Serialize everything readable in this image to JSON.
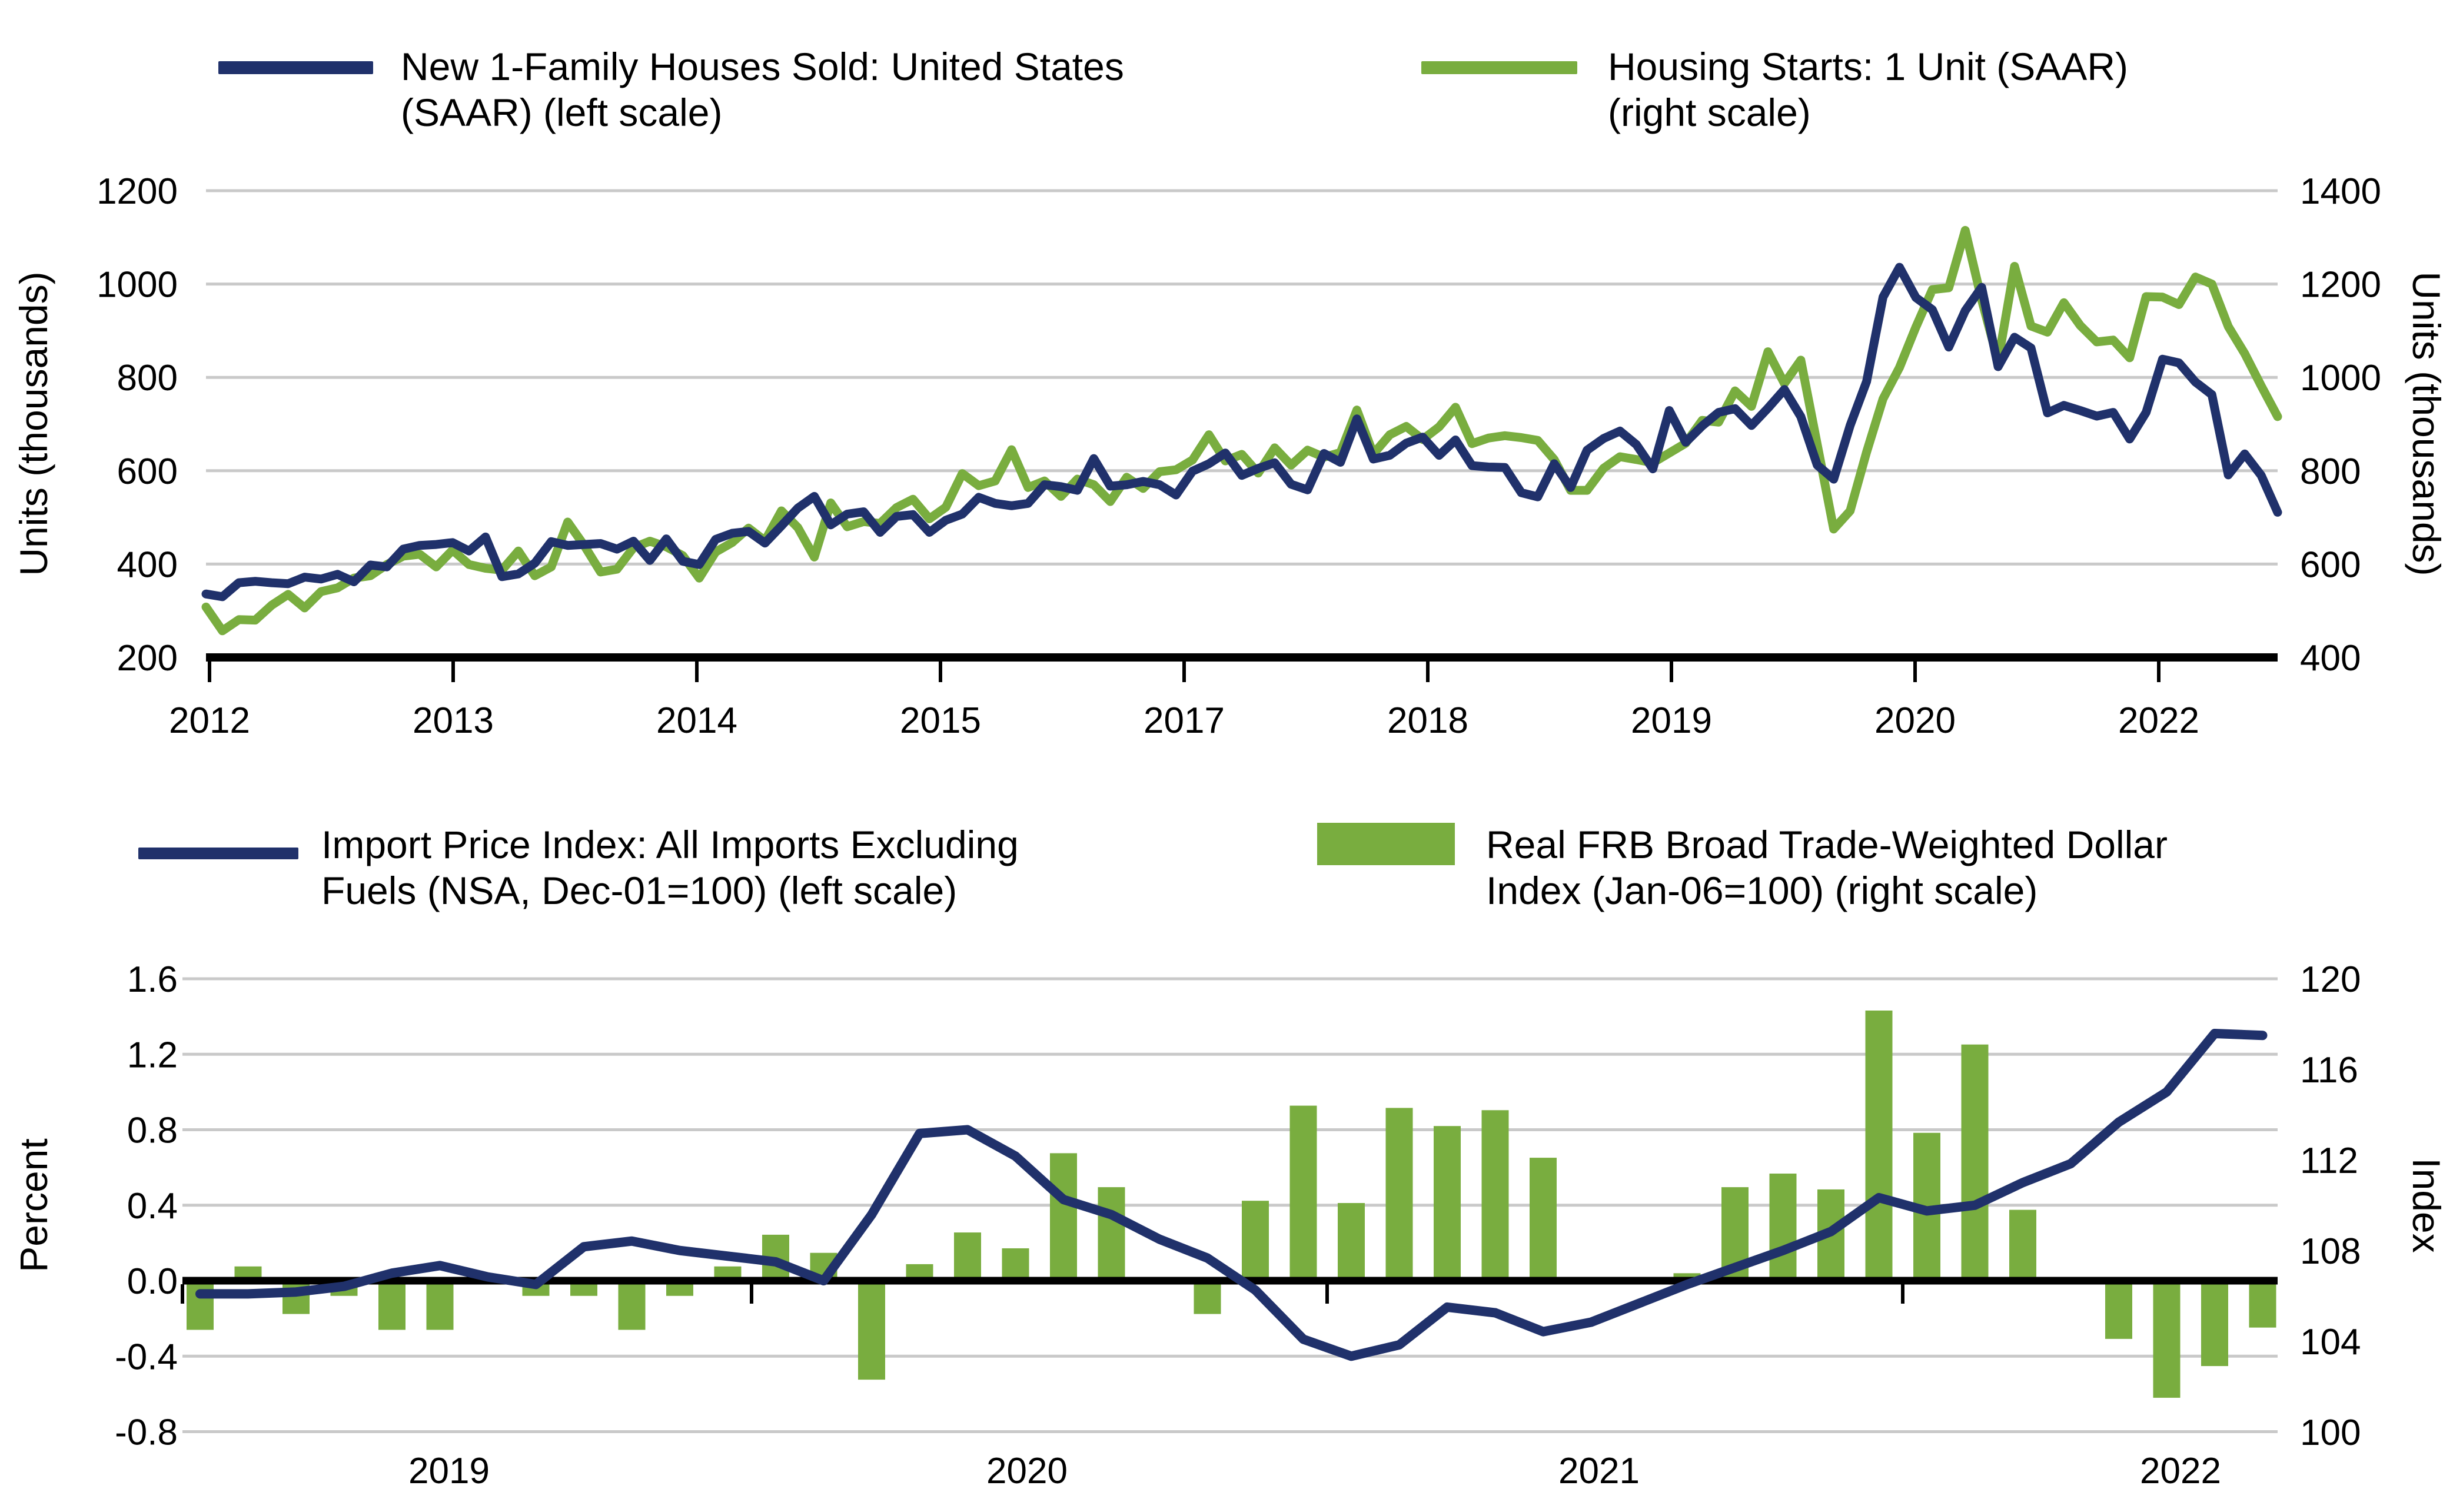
{
  "colors": {
    "navy": "#20316b",
    "green": "#79ad3f",
    "gridline": "#c9c9c9",
    "axis_black": "#000000",
    "background": "#ffffff"
  },
  "top_chart": {
    "legend": [
      {
        "line1": "New 1-Family Houses Sold: United States",
        "line2": "(SAAR) (left scale)",
        "swatch": "line",
        "color": "#20316b"
      },
      {
        "line1": "Housing Starts: 1 Unit (SAAR)",
        "line2": "(right scale)",
        "swatch": "line",
        "color": "#79ad3f"
      }
    ],
    "left_axis_title": "Units (thousands)",
    "right_axis_title": "Units (thousands)",
    "left_tick_labels": [
      "1200",
      "1000",
      "800",
      "600",
      "400",
      "200"
    ],
    "right_tick_labels": [
      "1400",
      "1200",
      "1000",
      "800",
      "600",
      "400"
    ],
    "x_tick_labels": [
      "2012",
      "2013",
      "2014",
      "2015",
      "2017",
      "2018",
      "2019",
      "2020",
      "2022"
    ]
  },
  "bottom_chart": {
    "legend": [
      {
        "line1": "Import Price Index: All Imports Excluding",
        "line2": "Fuels (NSA, Dec-01=100) (left scale)",
        "swatch": "line",
        "color": "#20316b"
      },
      {
        "line1": "Real FRB Broad Trade-Weighted Dollar",
        "line2": "Index (Jan-06=100) (right scale)",
        "swatch": "rect",
        "color": "#79ad3f"
      }
    ],
    "left_axis_title": "Percent",
    "right_axis_title": "Index",
    "left_tick_labels": [
      "1.6",
      "1.2",
      "0.8",
      "0.4",
      "0.0",
      "-0.4",
      "-0.8"
    ],
    "right_tick_labels": [
      "120",
      "116",
      "112",
      "108",
      "104",
      "100"
    ],
    "x_tick_labels": [
      "2019",
      "2020",
      "2021",
      "2022"
    ]
  },
  "chart_data": [
    {
      "type": "line",
      "title": "New 1-Family Houses Sold vs Housing Starts: 1 Unit",
      "x": {
        "start": "2012-01",
        "freq": "monthly",
        "count": 127
      },
      "xtick_labels": [
        "2012",
        "2013",
        "2014",
        "2015",
        "2017",
        "2018",
        "2019",
        "2020",
        "2022"
      ],
      "left_ylabel": "Units (thousands)",
      "right_ylabel": "Units (thousands)",
      "left_ylim": [
        200,
        1200
      ],
      "right_ylim": [
        400,
        1400
      ],
      "grid": true,
      "legend_position": "top",
      "series": [
        {
          "name": "New 1-Family Houses Sold: United States (SAAR) (left scale)",
          "axis": "left",
          "color": "#20316b",
          "values": [
            336,
            330,
            360,
            363,
            360,
            358,
            372,
            368,
            378,
            362,
            398,
            394,
            432,
            440,
            442,
            446,
            428,
            458,
            373,
            379,
            402,
            448,
            440,
            442,
            444,
            432,
            449,
            408,
            454,
            406,
            399,
            453,
            466,
            470,
            445,
            482,
            520,
            545,
            484,
            507,
            512,
            468,
            502,
            506,
            468,
            494,
            507,
            543,
            530,
            525,
            530,
            570,
            566,
            558,
            626,
            567,
            570,
            577,
            570,
            548,
            599,
            615,
            638,
            590,
            605,
            617,
            571,
            559,
            637,
            618,
            711,
            625,
            633,
            659,
            672,
            633,
            666,
            611,
            608,
            607,
            553,
            544,
            615,
            564,
            644,
            669,
            685,
            656,
            604,
            729,
            661,
            696,
            725,
            733,
            697,
            734,
            774,
            716,
            612,
            582,
            697,
            791,
            972,
            1036,
            971,
            945,
            865,
            943,
            993,
            823,
            886,
            863,
            724,
            740,
            729,
            717,
            725,
            668,
            725,
            839,
            831,
            790,
            763,
            591,
            636,
            590,
            511
          ]
        },
        {
          "name": "Housing Starts: 1 Unit (SAAR) (right scale)",
          "axis": "right",
          "color": "#79ad3f",
          "values": [
            508,
            457,
            481,
            480,
            512,
            535,
            506,
            541,
            549,
            570,
            575,
            599,
            617,
            621,
            594,
            630,
            599,
            591,
            587,
            628,
            575,
            594,
            690,
            640,
            583,
            589,
            635,
            649,
            637,
            618,
            570,
            626,
            646,
            677,
            650,
            714,
            678,
            615,
            731,
            680,
            691,
            687,
            721,
            739,
            697,
            722,
            794,
            768,
            778,
            845,
            764,
            778,
            745,
            782,
            770,
            734,
            786,
            762,
            798,
            802,
            823,
            877,
            821,
            835,
            795,
            849,
            812,
            844,
            829,
            839,
            930,
            836,
            877,
            895,
            867,
            894,
            936,
            858,
            870,
            875,
            871,
            865,
            824,
            758,
            758,
            805,
            830,
            824,
            817,
            838,
            859,
            908,
            904,
            971,
            938,
            1055,
            987,
            1037,
            856,
            675,
            714,
            840,
            954,
            1021,
            1108,
            1188,
            1192,
            1315,
            1166,
            1035,
            1238,
            1110,
            1097,
            1160,
            1111,
            1076,
            1080,
            1042,
            1173,
            1172,
            1156,
            1215,
            1200,
            1109,
            1051,
            982,
            916
          ]
        }
      ]
    },
    {
      "type": "combo-line-bar",
      "title": "Import Price Index m/m vs Real FRB Broad Trade-Weighted Dollar Index",
      "x": {
        "start": "2018-08",
        "freq": "monthly",
        "count": 44
      },
      "xtick_labels": [
        "2019",
        "2020",
        "2021",
        "2022"
      ],
      "left_ylabel": "Percent",
      "right_ylabel": "Index",
      "left_ylim": [
        -0.8,
        1.6
      ],
      "right_ylim": [
        100,
        120
      ],
      "grid": true,
      "legend_position": "top",
      "bar_baseline_right_value": 106.67,
      "series": [
        {
          "name": "Import Price Index: All Imports Excluding Fuels (NSA, Dec-01=100) (left scale)",
          "type": "line",
          "axis": "left",
          "color": "#20316b",
          "values": [
            -0.07,
            -0.07,
            -0.06,
            -0.03,
            0.04,
            0.08,
            0.02,
            -0.02,
            0.18,
            0.21,
            0.16,
            0.13,
            0.1,
            0.0,
            0.35,
            0.78,
            0.8,
            0.66,
            0.43,
            0.35,
            0.22,
            0.12,
            -0.05,
            -0.31,
            -0.4,
            -0.34,
            -0.14,
            -0.17,
            -0.27,
            -0.22,
            -0.12,
            -0.02,
            0.07,
            0.16,
            0.26,
            0.44,
            0.37,
            0.4,
            0.52,
            0.62,
            0.84,
            1.0,
            1.31,
            1.3
          ]
        },
        {
          "name": "Real FRB Broad Trade-Weighted Dollar Index (Jan-06=100) (right scale)",
          "type": "bar",
          "axis": "right",
          "color": "#79ad3f",
          "values": [
            104.5,
            107.3,
            105.2,
            106.0,
            104.5,
            104.5,
            106.7,
            106.0,
            106.0,
            104.5,
            106.0,
            107.3,
            108.7,
            107.9,
            102.3,
            107.4,
            108.8,
            108.1,
            112.3,
            110.8,
            106.7,
            105.2,
            110.2,
            114.4,
            110.1,
            114.3,
            113.5,
            114.2,
            112.1,
            106.7,
            106.7,
            107.0,
            110.8,
            111.4,
            110.7,
            118.6,
            113.2,
            117.1,
            109.8,
            106.7,
            104.1,
            101.5,
            102.9,
            104.6
          ]
        }
      ]
    }
  ]
}
